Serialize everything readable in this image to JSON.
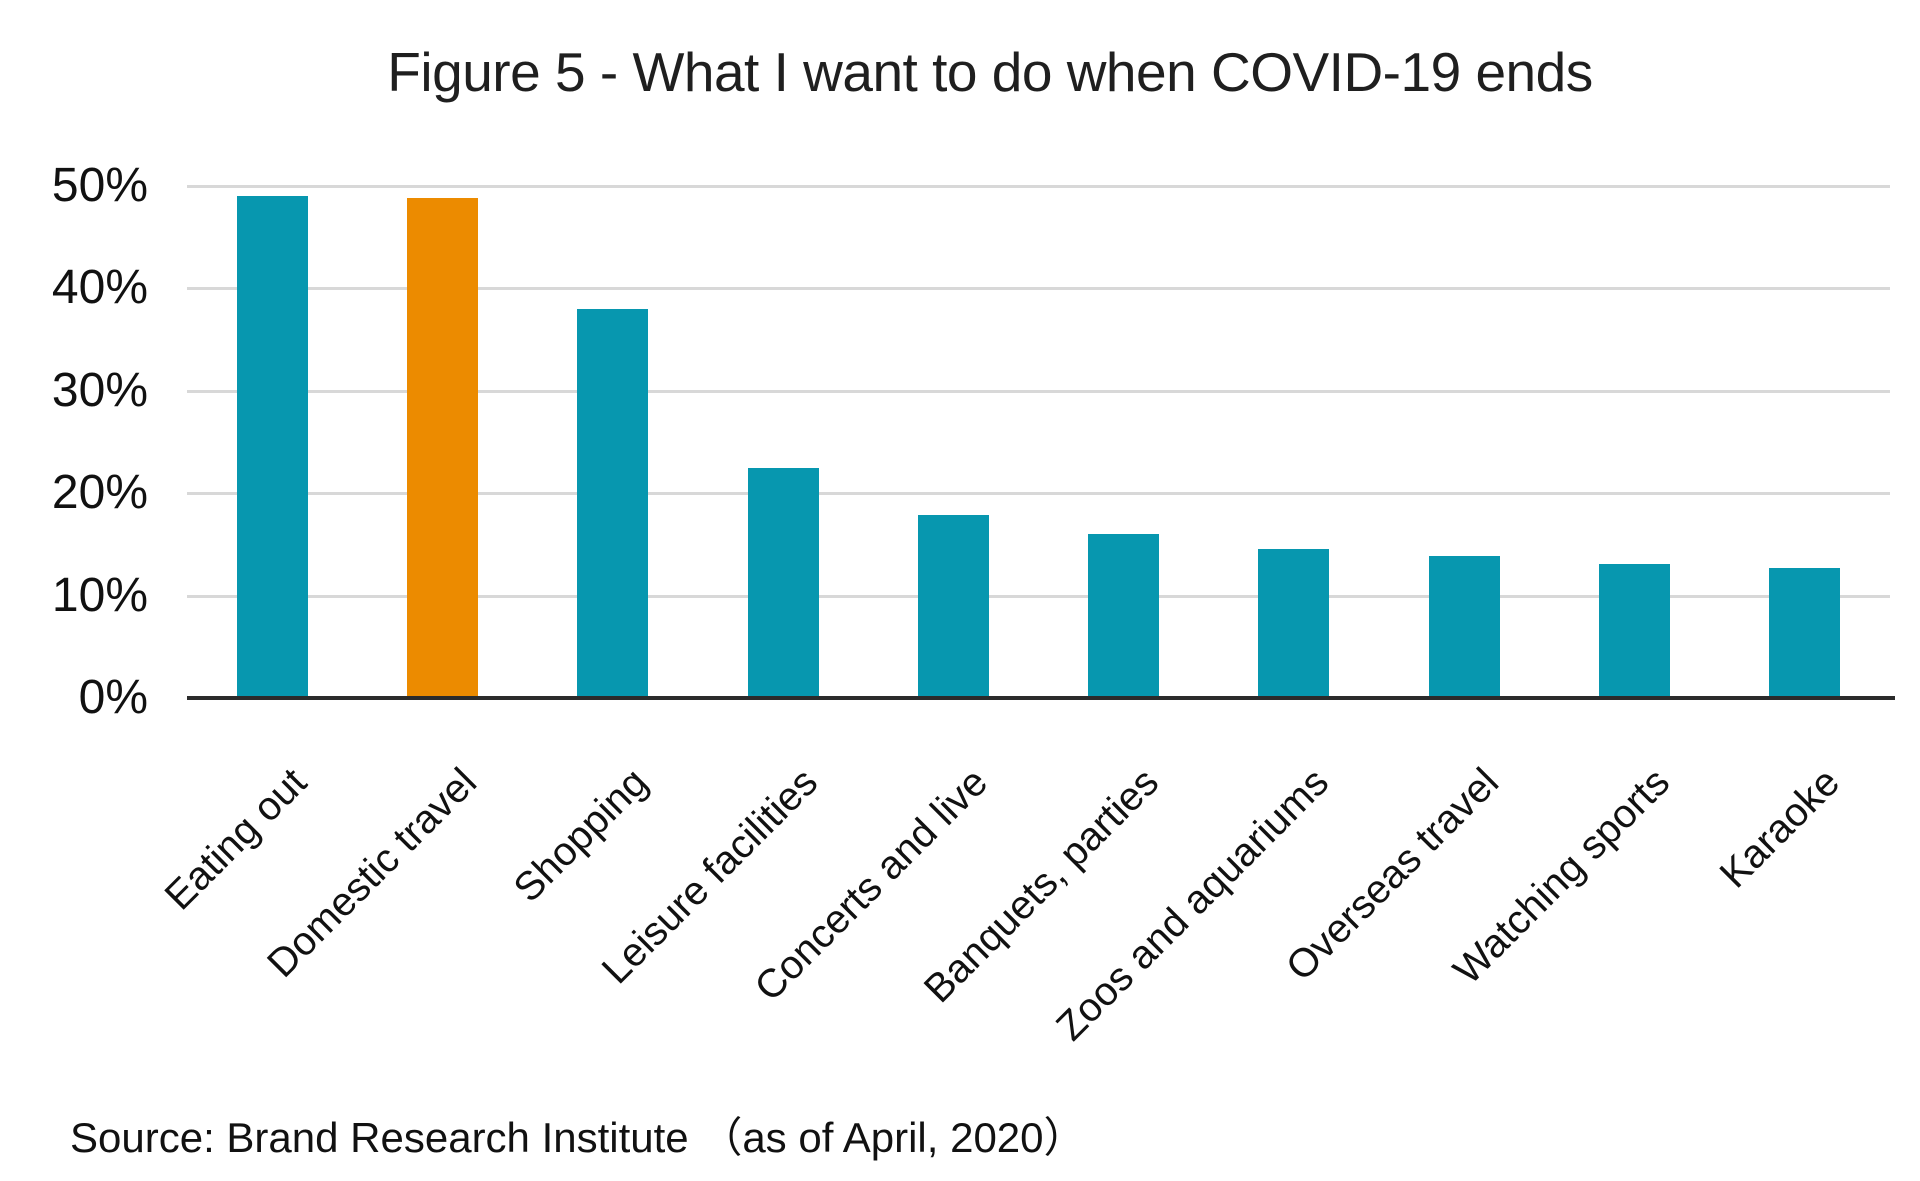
{
  "title": "Figure 5 - What I want to do when COVID-19 ends",
  "source_note": "Source: Brand Research Institute （as of April, 2020）",
  "chart_data": {
    "type": "bar",
    "title": "Figure 5 - What I want to do when COVID-19 ends",
    "categories": [
      "Eating out",
      "Domestic travel",
      "Shopping",
      "Leisure facilities",
      "Concerts and live",
      "Banquets, parties",
      "Zoos and aquariums",
      "Overseas travel",
      "Watching sports",
      "Karaoke"
    ],
    "values": [
      49.0,
      48.8,
      38.0,
      22.4,
      17.9,
      16.0,
      14.5,
      13.9,
      13.1,
      12.7
    ],
    "unit": "%",
    "highlight_index": 1,
    "bar_color": "#0797af",
    "highlight_color": "#ec8b00",
    "gridline_color": "#d8d8d8",
    "axis_color": "#2b2b2b",
    "ylim": [
      0,
      50
    ],
    "yticks": [
      0,
      10,
      20,
      30,
      40,
      50
    ],
    "ytick_suffix": "%",
    "grid": true,
    "legend_position": "none",
    "xlabel_rotation_deg": -45,
    "xlabel": "",
    "ylabel": "",
    "source": "Source: Brand Research Institute （as of April, 2020）"
  }
}
